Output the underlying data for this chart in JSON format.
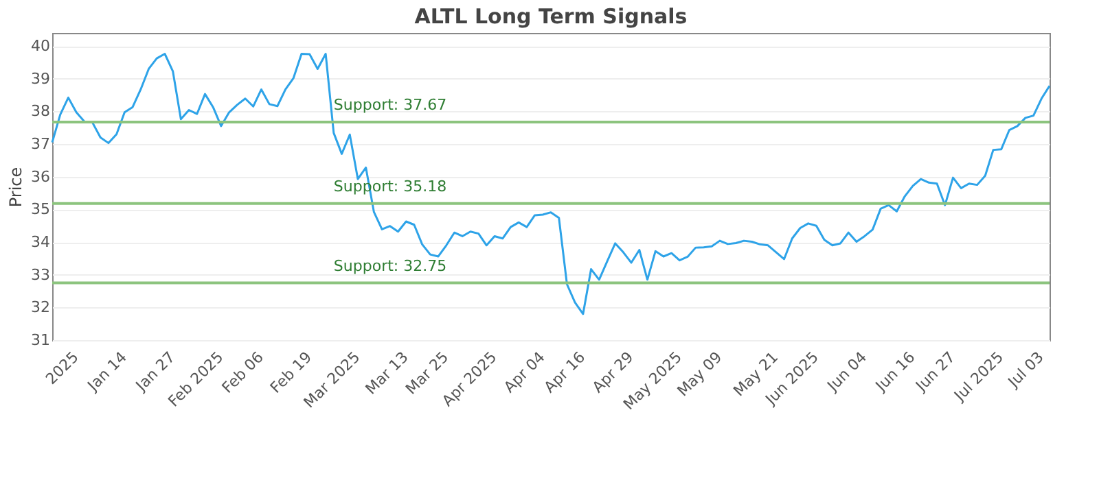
{
  "chart_data": {
    "type": "line",
    "title": "ALTL Long Term Signals",
    "ylabel": "Price",
    "categories": [
      null,
      null,
      null,
      "2025",
      null,
      null,
      null,
      null,
      null,
      "Jan 14",
      null,
      null,
      null,
      null,
      null,
      "Jan 27",
      null,
      null,
      null,
      null,
      null,
      "Feb 2025",
      null,
      null,
      null,
      null,
      "Feb 06",
      null,
      null,
      null,
      null,
      null,
      "Feb 19",
      null,
      null,
      null,
      null,
      null,
      "Mar 2025",
      null,
      null,
      null,
      null,
      null,
      "Mar 13",
      null,
      null,
      null,
      null,
      "Mar 25",
      null,
      null,
      null,
      null,
      null,
      "Apr 2025",
      null,
      null,
      null,
      null,
      null,
      "Apr 04",
      null,
      null,
      null,
      null,
      "Apr 16",
      null,
      null,
      null,
      null,
      null,
      "Apr 29",
      null,
      null,
      null,
      null,
      null,
      "May 2025",
      null,
      null,
      null,
      null,
      "May 09",
      null,
      null,
      null,
      null,
      null,
      null,
      "May 21",
      null,
      null,
      null,
      null,
      "Jun 2025",
      null,
      null,
      null,
      null,
      null,
      "Jun 04",
      null,
      null,
      null,
      null,
      null,
      "Jun 16",
      null,
      null,
      null,
      null,
      "Jun 27",
      null,
      null,
      null,
      null,
      null,
      "Jul 2025",
      null,
      null,
      null,
      null,
      "Jul 03",
      null
    ],
    "series": [
      {
        "color": "#2ea3e8",
        "values": [
          37.05,
          37.9,
          38.42,
          37.97,
          37.69,
          37.66,
          37.2,
          37.03,
          37.3,
          37.97,
          38.13,
          38.67,
          39.3,
          39.62,
          39.76,
          39.23,
          37.76,
          38.04,
          37.92,
          38.53,
          38.13,
          37.55,
          37.97,
          38.2,
          38.39,
          38.15,
          38.67,
          38.22,
          38.16,
          38.67,
          39.02,
          39.76,
          39.75,
          39.3,
          39.76,
          37.34,
          36.7,
          37.29,
          35.93,
          36.28,
          34.92,
          34.39,
          34.49,
          34.32,
          34.63,
          34.53,
          33.93,
          33.62,
          33.56,
          33.9,
          34.29,
          34.18,
          34.32,
          34.26,
          33.9,
          34.18,
          34.11,
          34.46,
          34.6,
          34.46,
          34.82,
          34.84,
          34.91,
          34.74,
          32.71,
          32.15,
          31.8,
          33.17,
          32.85,
          33.41,
          33.96,
          33.69,
          33.37,
          33.76,
          32.85,
          33.72,
          33.56,
          33.66,
          33.44,
          33.55,
          33.83,
          33.84,
          33.87,
          34.04,
          33.94,
          33.97,
          34.04,
          34.01,
          33.93,
          33.9,
          33.69,
          33.48,
          34.11,
          34.43,
          34.57,
          34.5,
          34.07,
          33.9,
          33.96,
          34.29,
          34.01,
          34.18,
          34.38,
          35.02,
          35.13,
          34.94,
          35.4,
          35.72,
          35.93,
          35.82,
          35.79,
          35.13,
          35.97,
          35.65,
          35.79,
          35.75,
          36.03,
          36.82,
          36.84,
          37.43,
          37.55,
          37.8,
          37.87,
          38.39,
          38.78
        ]
      }
    ],
    "ylim": [
      31,
      40.4
    ],
    "yticks": [
      31,
      32,
      33,
      34,
      35,
      36,
      37,
      38,
      39,
      40
    ],
    "grid": "y",
    "ref_lines": [
      {
        "axis": "y",
        "value": 37.67,
        "label": "Support: 37.67",
        "color": "#8cc47e"
      },
      {
        "axis": "y",
        "value": 35.18,
        "label": "Support: 35.18",
        "color": "#8cc47e"
      },
      {
        "axis": "y",
        "value": 32.75,
        "label": "Support: 32.75",
        "color": "#8cc47e"
      }
    ]
  }
}
